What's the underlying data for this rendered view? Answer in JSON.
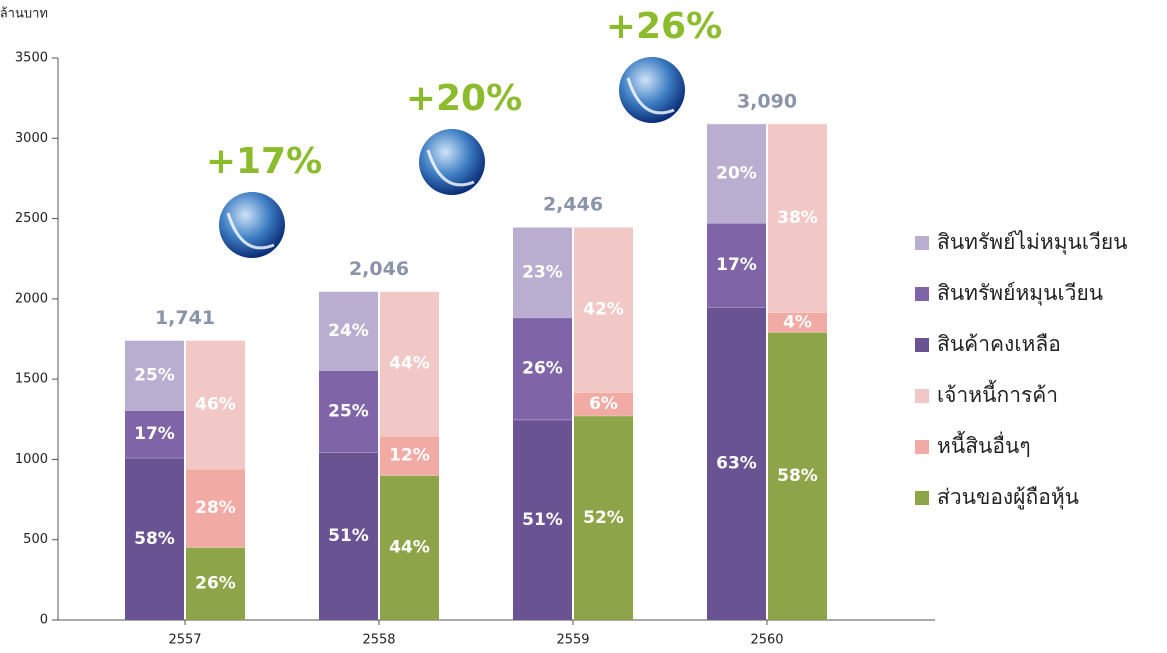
{
  "chart_data": {
    "type": "bar",
    "y_label": "ล้านบาท",
    "categories": [
      "2557",
      "2558",
      "2559",
      "2560"
    ],
    "ylim": [
      0,
      3500
    ],
    "yticks": [
      0,
      500,
      1000,
      1500,
      2000,
      2500,
      3000,
      3500
    ],
    "totals": {
      "values": [
        1741,
        2046,
        2446,
        3090
      ],
      "value_labels": [
        "1,741",
        "2,046",
        "2,446",
        "3,090"
      ]
    },
    "growth": [
      "+17%",
      "+20%",
      "+26%"
    ],
    "series": [
      {
        "name": "สินทรัพย์ไม่หมุนเวียน",
        "color": "#b9aed0",
        "stack": 0,
        "values": [
          25,
          24,
          23,
          20
        ],
        "value_labels": [
          "25%",
          "24%",
          "23%",
          "20%"
        ]
      },
      {
        "name": "สินทรัพย์หมุนเวียน",
        "color": "#7f65a8",
        "stack": 0,
        "values": [
          17,
          25,
          26,
          17
        ],
        "value_labels": [
          "17%",
          "25%",
          "26%",
          "17%"
        ]
      },
      {
        "name": "สินค้าคงเหลือ",
        "color": "#6a5393",
        "stack": 0,
        "values": [
          58,
          51,
          51,
          63
        ],
        "value_labels": [
          "58%",
          "51%",
          "51%",
          "63%"
        ]
      },
      {
        "name": "เจ้าหนี้การค้า",
        "color": "#f2c8c7",
        "stack": 1,
        "values": [
          46,
          44,
          42,
          38
        ],
        "value_labels": [
          "46%",
          "44%",
          "42%",
          "38%"
        ]
      },
      {
        "name": "หนี้สินอื่นๆ",
        "color": "#f2aaa4",
        "stack": 1,
        "values": [
          28,
          12,
          6,
          4
        ],
        "value_labels": [
          "28%",
          "12%",
          "6%",
          "4%"
        ]
      },
      {
        "name": "ส่วนของผู้ถือหุ้น",
        "color": "#8da548",
        "stack": 1,
        "values": [
          26,
          44,
          52,
          58
        ],
        "value_labels": [
          "26%",
          "44%",
          "52%",
          "58%"
        ]
      }
    ]
  }
}
